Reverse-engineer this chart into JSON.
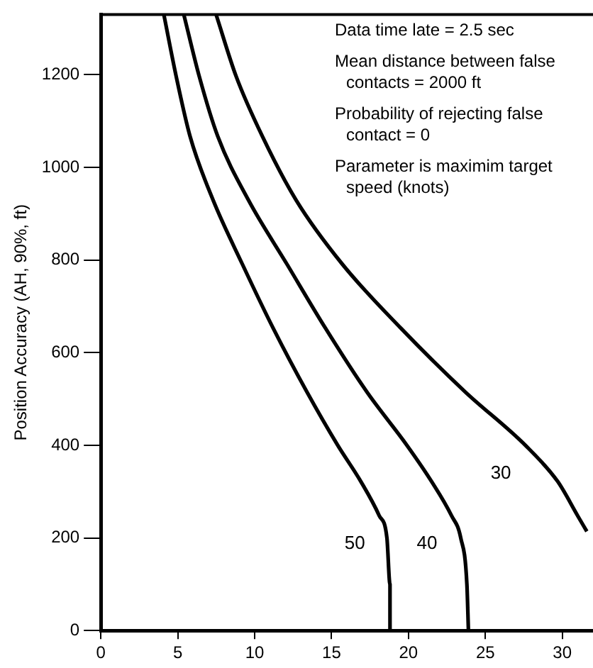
{
  "chart_data": {
    "type": "line",
    "ylabel": "Position Accuracy (AH, 90%, ft)",
    "xlim": [
      0,
      32
    ],
    "xticks": [
      0,
      5,
      10,
      15,
      20,
      25,
      30
    ],
    "ylim": [
      0,
      1330
    ],
    "yticks": [
      0,
      200,
      400,
      600,
      800,
      1000,
      1200
    ],
    "grid": false,
    "legend": false,
    "marker": "none",
    "line_style": "solid",
    "series": [
      {
        "name": "50",
        "color": "#000000",
        "x": [
          4.1,
          4.9,
          5.8,
          7.3,
          9.2,
          11.2,
          13.4,
          15.4,
          16.9,
          18.1,
          18.6,
          18.8,
          18.8
        ],
        "values": [
          1329,
          1196,
          1067,
          929,
          791,
          653,
          515,
          400,
          322,
          248,
          200,
          100,
          0
        ]
      },
      {
        "name": "40",
        "color": "#000000",
        "x": [
          5.4,
          6.4,
          7.6,
          9.6,
          12.1,
          14.6,
          17.3,
          19.9,
          21.5,
          22.8,
          23.4,
          23.8,
          23.9
        ],
        "values": [
          1329,
          1196,
          1067,
          929,
          791,
          653,
          515,
          400,
          322,
          248,
          200,
          100,
          0
        ]
      },
      {
        "name": "30",
        "color": "#000000",
        "x": [
          7.5,
          8.8,
          10.5,
          12.7,
          15.7,
          19.5,
          23.7,
          27.6,
          29.7,
          31.0,
          31.6
        ],
        "values": [
          1329,
          1196,
          1067,
          929,
          791,
          653,
          515,
          400,
          322,
          248,
          214
        ]
      }
    ],
    "annotations": [
      "Data time late = 2.5 sec",
      "Mean distance between false contacts = 2000 ft",
      "Probability of rejecting false contact = 0",
      "Parameter is maximim target speed (knots)"
    ]
  }
}
